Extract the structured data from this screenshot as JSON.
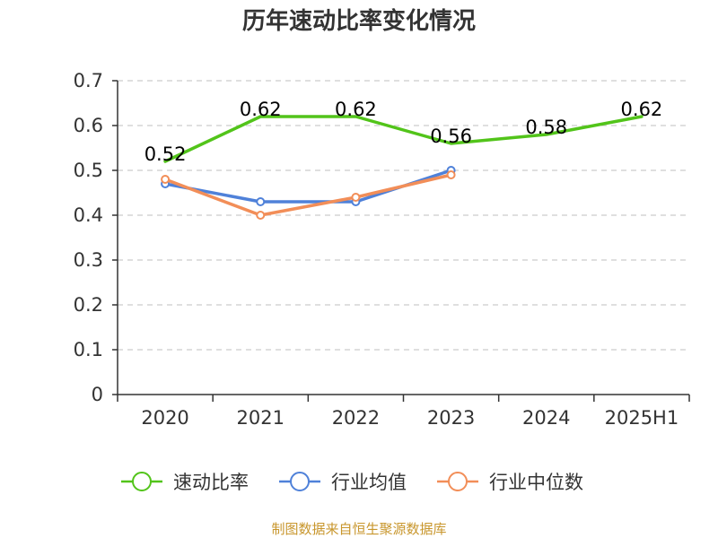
{
  "chart_data": {
    "type": "line",
    "title": "历年速动比率变化情况",
    "categories": [
      "2020",
      "2021",
      "2022",
      "2023",
      "2024",
      "2025H1"
    ],
    "ylim": [
      0,
      0.7
    ],
    "yticks": [
      "0",
      "0.1",
      "0.2",
      "0.3",
      "0.4",
      "0.5",
      "0.6",
      "0.7"
    ],
    "grid": true,
    "legend_position": "bottom",
    "series": [
      {
        "name": "速动比率",
        "color": "#52c41a",
        "values": [
          0.52,
          0.62,
          0.62,
          0.56,
          0.58,
          0.62
        ],
        "labels": [
          "0.52",
          "0.62",
          "0.62",
          "0.56",
          "0.58",
          "0.62"
        ],
        "show_labels": true,
        "markers": false
      },
      {
        "name": "行业均值",
        "color": "#4f81d9",
        "values": [
          0.47,
          0.43,
          0.43,
          0.5,
          null,
          null
        ],
        "show_labels": false,
        "markers": true
      },
      {
        "name": "行业中位数",
        "color": "#f28e58",
        "values": [
          0.48,
          0.4,
          0.44,
          0.49,
          null,
          null
        ],
        "show_labels": false,
        "markers": true
      }
    ]
  },
  "source_text": "制图数据来自恒生聚源数据库",
  "source_color": "#c8962c"
}
